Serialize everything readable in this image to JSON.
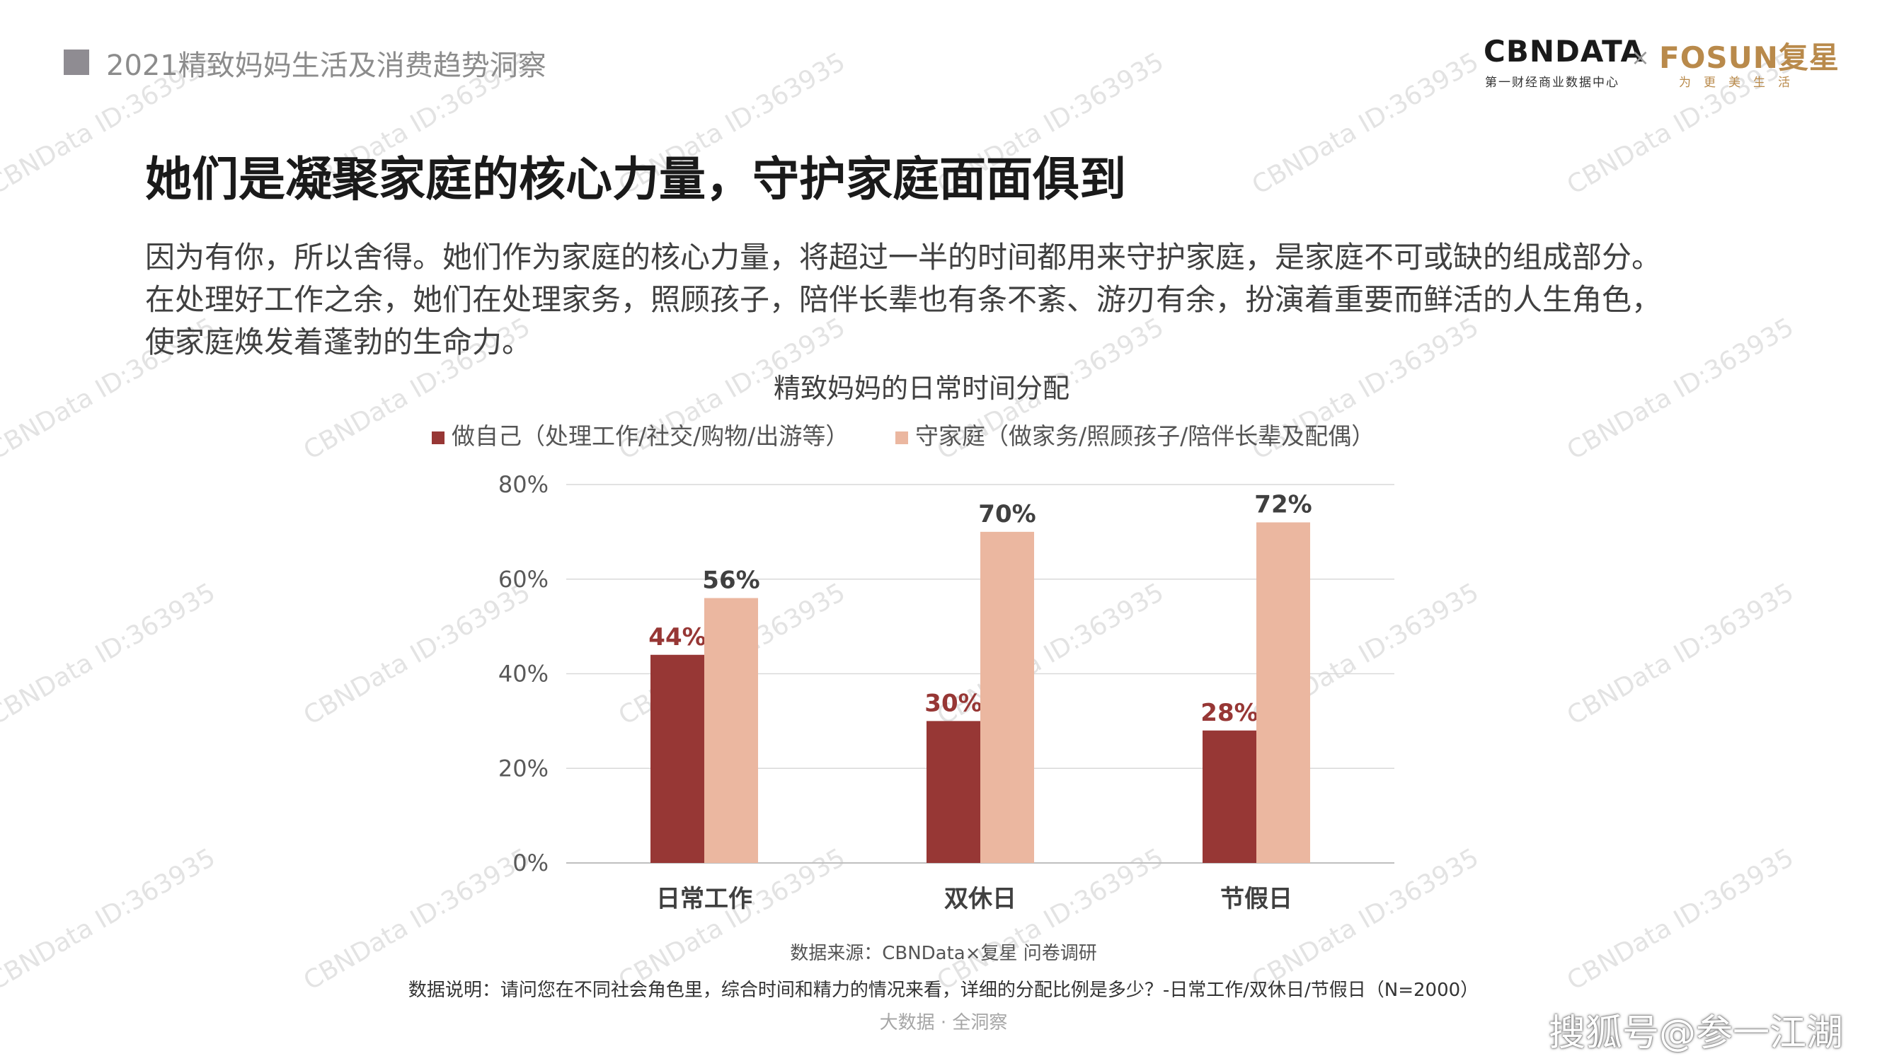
{
  "header": {
    "report_title": "2021精致妈妈生活及消费趋势洞察",
    "logo_cbndata": "CBNDATA",
    "logo_cbndata_sub": "第一财经商业数据中心",
    "logo_separator": "×",
    "logo_fosun": "FOSUN复星",
    "logo_fosun_sub": "为更美生活"
  },
  "main": {
    "title": "她们是凝聚家庭的核心力量，守护家庭面面俱到",
    "paragraph_lines": [
      "因为有你，所以舍得。她们作为家庭的核心力量，将超过一半的时间都用来守护家庭，是家庭不可或缺的组成部分。",
      "在处理好工作之余，她们在处理家务，照顾孩子，陪伴长辈也有条不紊、游刃有余，扮演着重要而鲜活的人生角色，",
      "使家庭焕发着蓬勃的生命力。"
    ]
  },
  "chart_data": {
    "type": "bar",
    "title": "精致妈妈的日常时间分配",
    "categories": [
      "日常工作",
      "双休日",
      "节假日"
    ],
    "series": [
      {
        "name": "做自己（处理工作/社交/购物/出游等）",
        "values": [
          44,
          30,
          28
        ],
        "labels": [
          "44%",
          "30%",
          "28%"
        ],
        "color": "#973735",
        "label_color": "#973735"
      },
      {
        "name": "守家庭（做家务/照顾孩子/陪伴长辈及配偶）",
        "values": [
          56,
          70,
          72
        ],
        "labels": [
          "56%",
          "70%",
          "72%"
        ],
        "color": "#ebb7a0",
        "label_color": "#404040"
      }
    ],
    "y_ticks": [
      "0%",
      "20%",
      "40%",
      "60%",
      "80%"
    ],
    "ylim": [
      0,
      80
    ],
    "legend_position": "top",
    "grid": true
  },
  "footer": {
    "source": "数据来源：CBNData×复星 问卷调研",
    "note": "数据说明：请问您在不同社会角色里，综合时间和精力的情况来看，详细的分配比例是多少？-日常工作/双休日/节假日（N=2000）",
    "brand": "大数据 · 全洞察"
  },
  "watermark": {
    "text": "CBNData ID:363935",
    "color": "#e3e3e3"
  },
  "overlay": {
    "sohu_text": "搜狐号@参一江湖"
  }
}
